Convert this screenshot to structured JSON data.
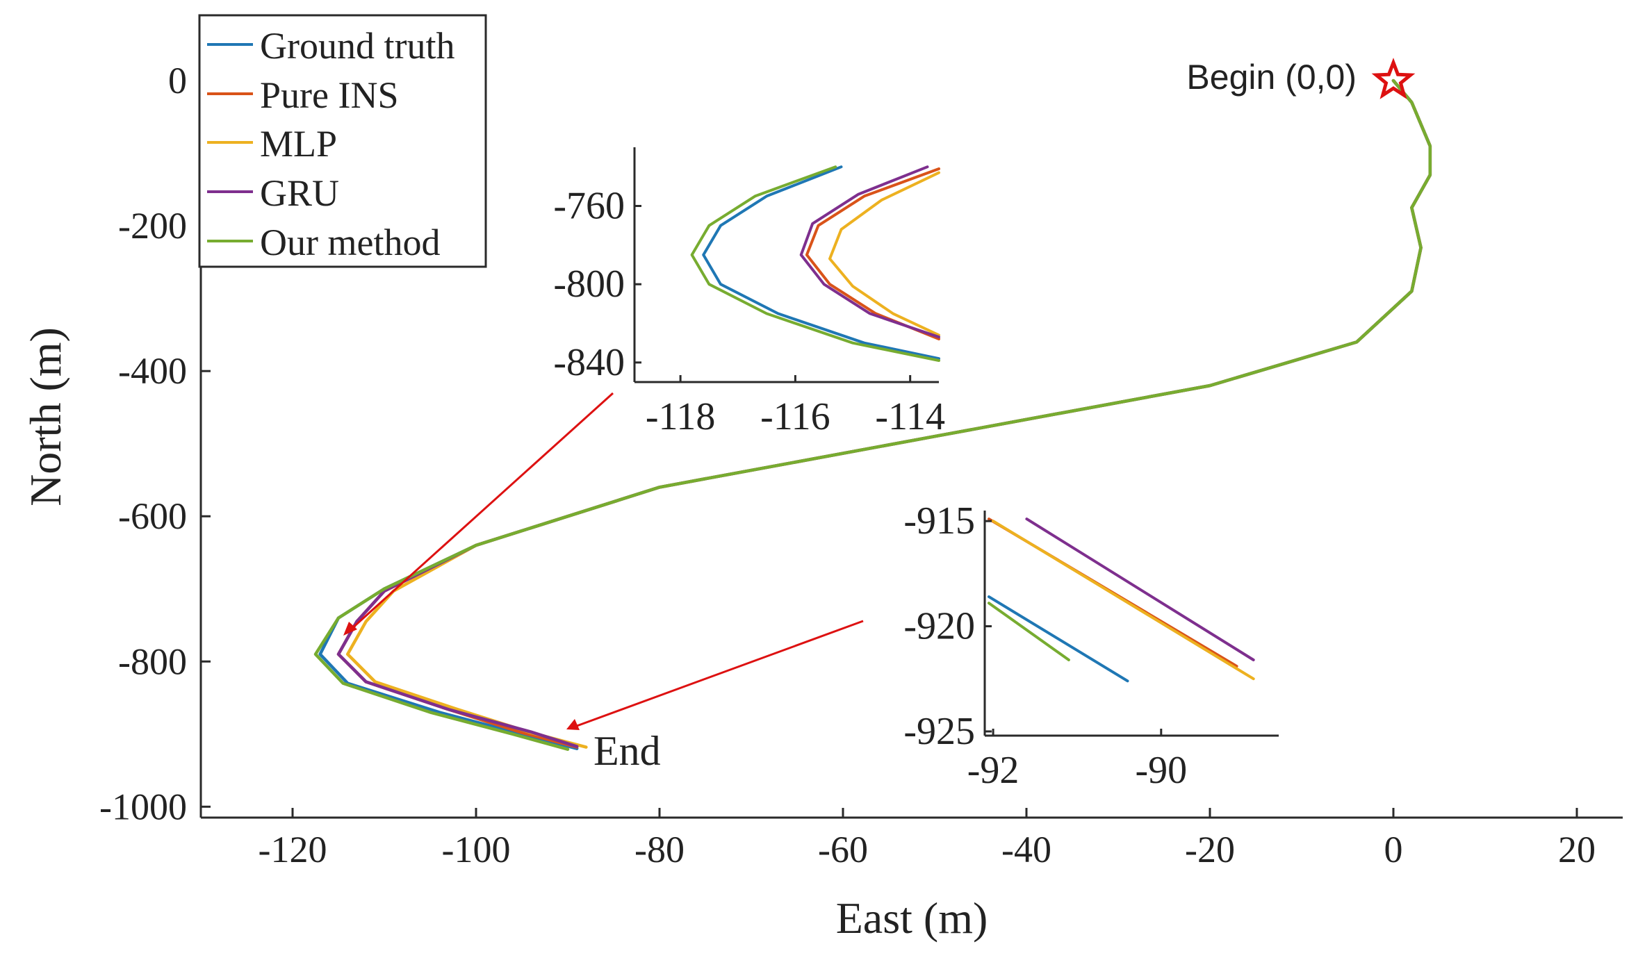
{
  "colors": {
    "ground_truth": "#1f77b4",
    "pure_ins": "#d95319",
    "mlp": "#edb120",
    "gru": "#7e2f8e",
    "our_method": "#77ac30",
    "arrow": "#dd1111",
    "star": "#dd1111",
    "axis": "#2a2a2a"
  },
  "chart_data": [
    {
      "id": "main",
      "type": "line",
      "title": "",
      "xlabel": "East (m)",
      "ylabel": "North (m)",
      "xlim": [
        -130,
        25
      ],
      "ylim": [
        -1015,
        90
      ],
      "xticks": [
        -120,
        -100,
        -80,
        -60,
        -40,
        -20,
        0,
        20
      ],
      "yticks": [
        0,
        -200,
        -400,
        -600,
        -800,
        -1000
      ],
      "xtick_labels": [
        "-120",
        "-100",
        "-80",
        "-60",
        "-40",
        "-20",
        "0",
        "20"
      ],
      "ytick_labels": [
        "0",
        "-200",
        "-400",
        "-600",
        "-800",
        "-1000"
      ],
      "legend": {
        "location": "top-left",
        "entries": [
          "Ground truth",
          "Pure INS",
          "MLP",
          "GRU",
          "Our method"
        ]
      },
      "series": [
        {
          "name": "Ground truth",
          "color_key": "ground_truth",
          "points": [
            [
              0,
              0
            ],
            [
              2,
              -30
            ],
            [
              4,
              -90
            ],
            [
              4,
              -130
            ],
            [
              2,
              -175
            ],
            [
              3,
              -230
            ],
            [
              2,
              -290
            ],
            [
              -4,
              -360
            ],
            [
              -20,
              -420
            ],
            [
              -50,
              -490
            ],
            [
              -80,
              -560
            ],
            [
              -100,
              -640
            ],
            [
              -110,
              -700
            ],
            [
              -115,
              -740
            ],
            [
              -117,
              -790
            ],
            [
              -114,
              -830
            ],
            [
              -104,
              -870
            ],
            [
              -95,
              -900
            ],
            [
              -89,
              -920
            ]
          ]
        },
        {
          "name": "Pure INS",
          "color_key": "pure_ins",
          "points": [
            [
              0,
              0
            ],
            [
              2,
              -30
            ],
            [
              4,
              -90
            ],
            [
              4,
              -130
            ],
            [
              2,
              -175
            ],
            [
              3,
              -230
            ],
            [
              2,
              -290
            ],
            [
              -4,
              -360
            ],
            [
              -20,
              -420
            ],
            [
              -50,
              -490
            ],
            [
              -80,
              -560
            ],
            [
              -100,
              -640
            ],
            [
              -110,
              -703
            ],
            [
              -113,
              -745
            ],
            [
              -115,
              -790
            ],
            [
              -112,
              -828
            ],
            [
              -103,
              -866
            ],
            [
              -95,
              -898
            ],
            [
              -89,
              -918
            ]
          ]
        },
        {
          "name": "MLP",
          "color_key": "mlp",
          "points": [
            [
              0,
              0
            ],
            [
              2,
              -30
            ],
            [
              4,
              -90
            ],
            [
              4,
              -130
            ],
            [
              2,
              -175
            ],
            [
              3,
              -230
            ],
            [
              2,
              -290
            ],
            [
              -4,
              -360
            ],
            [
              -20,
              -420
            ],
            [
              -50,
              -490
            ],
            [
              -80,
              -560
            ],
            [
              -100,
              -640
            ],
            [
              -109,
              -703
            ],
            [
              -112,
              -745
            ],
            [
              -114,
              -790
            ],
            [
              -111,
              -828
            ],
            [
              -102,
              -866
            ],
            [
              -94,
              -898
            ],
            [
              -88,
              -918
            ]
          ]
        },
        {
          "name": "GRU",
          "color_key": "gru",
          "points": [
            [
              0,
              0
            ],
            [
              2,
              -30
            ],
            [
              4,
              -90
            ],
            [
              4,
              -130
            ],
            [
              2,
              -175
            ],
            [
              3,
              -230
            ],
            [
              2,
              -290
            ],
            [
              -4,
              -360
            ],
            [
              -20,
              -420
            ],
            [
              -50,
              -490
            ],
            [
              -80,
              -560
            ],
            [
              -100,
              -640
            ],
            [
              -110,
              -703
            ],
            [
              -113,
              -745
            ],
            [
              -115,
              -790
            ],
            [
              -112,
              -828
            ],
            [
              -103,
              -866
            ],
            [
              -94,
              -897
            ],
            [
              -89,
              -917
            ]
          ]
        },
        {
          "name": "Our method",
          "color_key": "our_method",
          "points": [
            [
              0,
              0
            ],
            [
              2,
              -30
            ],
            [
              4,
              -90
            ],
            [
              4,
              -130
            ],
            [
              2,
              -175
            ],
            [
              3,
              -230
            ],
            [
              2,
              -290
            ],
            [
              -4,
              -360
            ],
            [
              -20,
              -420
            ],
            [
              -50,
              -490
            ],
            [
              -80,
              -560
            ],
            [
              -100,
              -640
            ],
            [
              -110,
              -700
            ],
            [
              -115,
              -740
            ],
            [
              -117.5,
              -790
            ],
            [
              -114.5,
              -830
            ],
            [
              -105,
              -870
            ],
            [
              -96,
              -900
            ],
            [
              -90,
              -921
            ]
          ]
        }
      ],
      "annotations": [
        {
          "text": "Begin (0,0)",
          "x": 0,
          "y": 0,
          "marker": "star"
        },
        {
          "text": "End",
          "x": -89,
          "y": -920
        }
      ]
    },
    {
      "id": "inset1",
      "type": "line",
      "xlim": [
        -118.8,
        -113.5
      ],
      "ylim": [
        -850,
        -730
      ],
      "xticks": [
        -118,
        -116,
        -114
      ],
      "yticks": [
        -760,
        -800,
        -840
      ],
      "xtick_labels": [
        "-118",
        "-116",
        "-114"
      ],
      "ytick_labels": [
        "-760",
        "-800",
        "-840"
      ],
      "series": [
        {
          "name": "Ground truth",
          "color_key": "ground_truth",
          "points": [
            [
              -115.2,
              -740
            ],
            [
              -116.5,
              -755
            ],
            [
              -117.3,
              -770
            ],
            [
              -117.6,
              -785
            ],
            [
              -117.3,
              -800
            ],
            [
              -116.3,
              -815
            ],
            [
              -114.8,
              -830
            ],
            [
              -113.5,
              -838
            ]
          ]
        },
        {
          "name": "Pure INS",
          "color_key": "pure_ins",
          "points": [
            [
              -113.5,
              -741
            ],
            [
              -114.8,
              -755
            ],
            [
              -115.6,
              -770
            ],
            [
              -115.8,
              -785
            ],
            [
              -115.4,
              -800
            ],
            [
              -114.6,
              -815
            ],
            [
              -113.5,
              -828
            ]
          ]
        },
        {
          "name": "MLP",
          "color_key": "mlp",
          "points": [
            [
              -113.5,
              -743
            ],
            [
              -114.5,
              -757
            ],
            [
              -115.2,
              -772
            ],
            [
              -115.4,
              -787
            ],
            [
              -115.0,
              -801
            ],
            [
              -114.3,
              -815
            ],
            [
              -113.5,
              -826
            ]
          ]
        },
        {
          "name": "GRU",
          "color_key": "gru",
          "points": [
            [
              -113.7,
              -740
            ],
            [
              -114.9,
              -754
            ],
            [
              -115.7,
              -769
            ],
            [
              -115.9,
              -785
            ],
            [
              -115.5,
              -800
            ],
            [
              -114.7,
              -815
            ],
            [
              -113.5,
              -827
            ]
          ]
        },
        {
          "name": "Our method",
          "color_key": "our_method",
          "points": [
            [
              -115.3,
              -740
            ],
            [
              -116.7,
              -755
            ],
            [
              -117.5,
              -770
            ],
            [
              -117.8,
              -785
            ],
            [
              -117.5,
              -800
            ],
            [
              -116.5,
              -815
            ],
            [
              -115.0,
              -830
            ],
            [
              -113.5,
              -839
            ]
          ]
        }
      ]
    },
    {
      "id": "inset2",
      "type": "line",
      "xlim": [
        -92.1,
        -88.6
      ],
      "ylim": [
        -925.2,
        -914.5
      ],
      "xticks": [
        -92,
        -90
      ],
      "yticks": [
        -915,
        -920,
        -925
      ],
      "xtick_labels": [
        "-92",
        "-90"
      ],
      "ytick_labels": [
        "-915",
        "-920",
        "-925"
      ],
      "series": [
        {
          "name": "Ground truth",
          "color_key": "ground_truth",
          "points": [
            [
              -92.05,
              -918.6
            ],
            [
              -90.4,
              -922.6
            ]
          ]
        },
        {
          "name": "Pure INS",
          "color_key": "pure_ins",
          "points": [
            [
              -92.05,
              -914.9
            ],
            [
              -89.1,
              -921.9
            ]
          ]
        },
        {
          "name": "MLP",
          "color_key": "mlp",
          "points": [
            [
              -92.0,
              -915.0
            ],
            [
              -88.9,
              -922.5
            ]
          ]
        },
        {
          "name": "GRU",
          "color_key": "gru",
          "points": [
            [
              -91.6,
              -914.9
            ],
            [
              -88.9,
              -921.6
            ]
          ]
        },
        {
          "name": "Our method",
          "color_key": "our_method",
          "points": [
            [
              -92.05,
              -918.9
            ],
            [
              -91.1,
              -921.6
            ]
          ]
        }
      ]
    }
  ]
}
